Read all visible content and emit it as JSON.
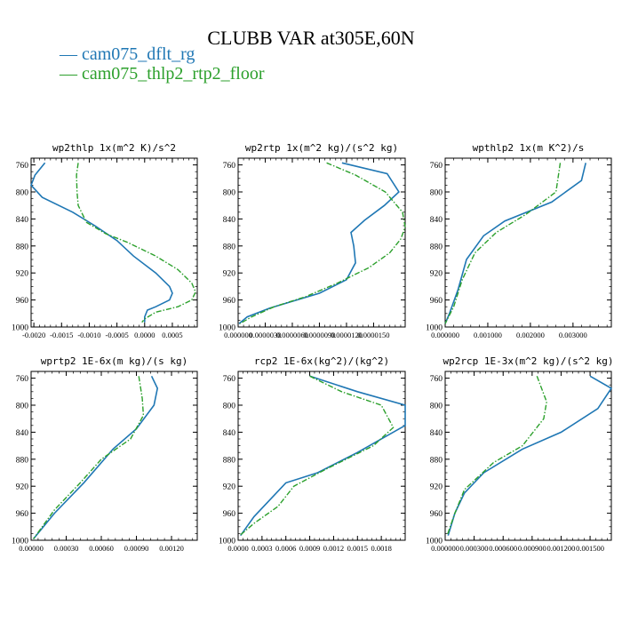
{
  "title": "CLUBB VAR at305E,60N",
  "legend": [
    {
      "name": "cam075_dflt_rg",
      "color": "#1f77b4",
      "dash": "solid"
    },
    {
      "name": "cam075_thlp2_rtp2_floor",
      "color": "#2ca02c",
      "dash": "dashdot"
    }
  ],
  "chart_data": [
    {
      "type": "line",
      "title": "wp2thlp  1x(m^2 K)/s^2",
      "xlim": [
        -0.00205,
        0.00095
      ],
      "ylim": [
        1000,
        750
      ],
      "y_ticks": [
        760,
        800,
        840,
        880,
        920,
        960,
        1000
      ],
      "x_ticks": [
        -0.002,
        -0.0015,
        -0.001,
        -0.0005,
        0,
        0.0005
      ],
      "x_tick_labels": [
        "-0.0020",
        "-0.0015",
        "-0.0010",
        "-0.0005",
        "0.0000",
        "0.0005"
      ],
      "series": [
        {
          "name": "cam075_dflt_rg",
          "points": [
            [
              -0.0018,
              757
            ],
            [
              -0.00198,
              775
            ],
            [
              -0.00205,
              790
            ],
            [
              -0.00185,
              808
            ],
            [
              -0.0013,
              830
            ],
            [
              -0.0009,
              850
            ],
            [
              -0.0005,
              872
            ],
            [
              -0.0002,
              895
            ],
            [
              0.0002,
              920
            ],
            [
              0.00045,
              940
            ],
            [
              0.0005,
              950
            ],
            [
              0.00045,
              960
            ],
            [
              0.0002,
              970
            ],
            [
              5e-05,
              975
            ],
            [
              0.0,
              985
            ],
            [
              0.0,
              993
            ]
          ]
        },
        {
          "name": "cam075_thlp2_rtp2_floor",
          "points": [
            [
              -0.0012,
              757
            ],
            [
              -0.00123,
              775
            ],
            [
              -0.00122,
              800
            ],
            [
              -0.0012,
              820
            ],
            [
              -0.00105,
              845
            ],
            [
              -0.0007,
              862
            ],
            [
              -0.0003,
              875
            ],
            [
              0.0002,
              895
            ],
            [
              0.0006,
              915
            ],
            [
              0.00085,
              935
            ],
            [
              0.00092,
              948
            ],
            [
              0.00085,
              960
            ],
            [
              0.0006,
              970
            ],
            [
              0.0002,
              978
            ],
            [
              0.0,
              988
            ],
            [
              -5e-05,
              993
            ]
          ]
        }
      ]
    },
    {
      "type": "line",
      "title": "wp2rtp  1x(m^2 kg)/(s^2 kg)",
      "xlim": [
        0,
        1.85e-05
      ],
      "ylim": [
        1000,
        750
      ],
      "y_ticks": [
        760,
        800,
        840,
        880,
        920,
        960,
        1000
      ],
      "x_ticks": [
        0,
        3e-06,
        6e-06,
        9e-06,
        1.2e-05,
        1.5e-05
      ],
      "x_tick_labels": [
        "0.000000",
        "0.0000030",
        "0.0000060",
        "0.0000090",
        "0.0000120",
        "0.0000150"
      ],
      "series": [
        {
          "name": "cam075_dflt_rg",
          "points": [
            [
              1.15e-05,
              757
            ],
            [
              1.65e-05,
              773
            ],
            [
              1.78e-05,
              800
            ],
            [
              1.62e-05,
              820
            ],
            [
              1.4e-05,
              842
            ],
            [
              1.25e-05,
              860
            ],
            [
              1.28e-05,
              880
            ],
            [
              1.3e-05,
              905
            ],
            [
              1.2e-05,
              930
            ],
            [
              9e-06,
              950
            ],
            [
              6e-06,
              962
            ],
            [
              3.5e-06,
              972
            ],
            [
              1e-06,
              985
            ],
            [
              1e-07,
              995
            ]
          ]
        },
        {
          "name": "cam075_thlp2_rtp2_floor",
          "points": [
            [
              9.8e-06,
              757
            ],
            [
              1.3e-05,
              775
            ],
            [
              1.63e-05,
              800
            ],
            [
              1.82e-05,
              830
            ],
            [
              1.85e-05,
              852
            ],
            [
              1.8e-05,
              870
            ],
            [
              1.68e-05,
              890
            ],
            [
              1.45e-05,
              912
            ],
            [
              1.1e-05,
              935
            ],
            [
              7.5e-06,
              955
            ],
            [
              4e-06,
              970
            ],
            [
              1.5e-06,
              985
            ],
            [
              2e-07,
              995
            ]
          ]
        }
      ]
    },
    {
      "type": "line",
      "title": "wpthlp2  1x(m K^2)/s",
      "xlim": [
        0,
        0.0039
      ],
      "ylim": [
        1000,
        750
      ],
      "y_ticks": [
        760,
        800,
        840,
        880,
        920,
        960,
        1000
      ],
      "x_ticks": [
        0,
        0.001,
        0.002,
        0.003
      ],
      "x_tick_labels": [
        "0.000000",
        "0.001000",
        "0.002000",
        "0.003000"
      ],
      "series": [
        {
          "name": "cam075_dflt_rg",
          "points": [
            [
              0.0033,
              757
            ],
            [
              0.0032,
              783
            ],
            [
              0.0025,
              815
            ],
            [
              0.0014,
              843
            ],
            [
              0.0009,
              865
            ],
            [
              0.0005,
              900
            ],
            [
              0.0003,
              945
            ],
            [
              0.0001,
              980
            ],
            [
              0.0,
              995
            ]
          ]
        },
        {
          "name": "cam075_thlp2_rtp2_floor",
          "points": [
            [
              0.0027,
              757
            ],
            [
              0.0026,
              800
            ],
            [
              0.0019,
              833
            ],
            [
              0.0012,
              860
            ],
            [
              0.0007,
              890
            ],
            [
              0.0004,
              930
            ],
            [
              0.0002,
              970
            ],
            [
              0.0,
              995
            ]
          ]
        }
      ]
    },
    {
      "type": "line",
      "title": "wprtp2  1E-6x(m kg)/(s kg)",
      "xlim": [
        0,
        0.00142
      ],
      "ylim": [
        1000,
        750
      ],
      "y_ticks": [
        760,
        800,
        840,
        880,
        920,
        960,
        1000
      ],
      "x_ticks": [
        0,
        0.0003,
        0.0006,
        0.0009,
        0.0012
      ],
      "x_tick_labels": [
        "0.00000",
        "0.00030",
        "0.00060",
        "0.00090",
        "0.00120"
      ],
      "series": [
        {
          "name": "cam075_dflt_rg",
          "points": [
            [
              0.00103,
              757
            ],
            [
              0.00108,
              775
            ],
            [
              0.00105,
              800
            ],
            [
              0.0009,
              835
            ],
            [
              0.0007,
              865
            ],
            [
              0.00045,
              915
            ],
            [
              0.0002,
              960
            ],
            [
              2e-05,
              998
            ]
          ]
        },
        {
          "name": "cam075_thlp2_rtp2_floor",
          "points": [
            [
              0.00092,
              757
            ],
            [
              0.00095,
              790
            ],
            [
              0.00096,
              815
            ],
            [
              0.00085,
              850
            ],
            [
              0.0006,
              880
            ],
            [
              0.00042,
              915
            ],
            [
              0.0002,
              955
            ],
            [
              2e-05,
              998
            ]
          ]
        }
      ]
    },
    {
      "type": "line",
      "title": "rcp2  1E-6x(kg^2)/(kg^2)",
      "xlim": [
        0,
        0.0021
      ],
      "ylim": [
        1000,
        750
      ],
      "y_ticks": [
        760,
        800,
        840,
        880,
        920,
        960,
        1000
      ],
      "x_ticks": [
        0,
        0.0003,
        0.0006,
        0.0009,
        0.0012,
        0.0015,
        0.0018
      ],
      "x_tick_labels": [
        "0.0000",
        "0.0003",
        "0.0006",
        "0.0009",
        "0.0012",
        "0.0015",
        "0.0018"
      ],
      "series": [
        {
          "name": "cam075_dflt_rg",
          "points": [
            [
              0.0009,
              757
            ],
            [
              0.0015,
              780
            ],
            [
              0.0021,
              800
            ],
            [
              0.0021,
              830
            ],
            [
              0.0015,
              870
            ],
            [
              0.001,
              900
            ],
            [
              0.0006,
              915
            ],
            [
              0.0004,
              940
            ],
            [
              0.0002,
              965
            ],
            [
              3e-05,
              993
            ]
          ]
        },
        {
          "name": "cam075_thlp2_rtp2_floor",
          "points": [
            [
              0.0009,
              757
            ],
            [
              0.0013,
              780
            ],
            [
              0.0018,
              800
            ],
            [
              0.00195,
              833
            ],
            [
              0.0017,
              860
            ],
            [
              0.0011,
              895
            ],
            [
              0.0007,
              920
            ],
            [
              0.0005,
              950
            ],
            [
              0.0002,
              975
            ],
            [
              2e-05,
              993
            ]
          ]
        }
      ]
    },
    {
      "type": "line",
      "title": "wp2rcp  1E-3x(m^2 kg)/(s^2 kg)",
      "xlim": [
        0,
        0.00172
      ],
      "ylim": [
        1000,
        750
      ],
      "y_ticks": [
        760,
        800,
        840,
        880,
        920,
        960,
        1000
      ],
      "x_ticks": [
        0,
        0.0003,
        0.0006,
        0.0009,
        0.0012,
        0.0015
      ],
      "x_tick_labels": [
        "0.000000",
        "0.000300",
        "0.000600",
        "0.000900",
        "0.001200",
        "0.001500"
      ],
      "series": [
        {
          "name": "cam075_dflt_rg",
          "points": [
            [
              0.0015,
              757
            ],
            [
              0.00172,
              775
            ],
            [
              0.00158,
              805
            ],
            [
              0.0012,
              840
            ],
            [
              0.0008,
              865
            ],
            [
              0.0004,
              900
            ],
            [
              0.0002,
              930
            ],
            [
              0.0001,
              960
            ],
            [
              3e-05,
              993
            ]
          ]
        },
        {
          "name": "cam075_thlp2_rtp2_floor",
          "points": [
            [
              0.00095,
              757
            ],
            [
              0.00105,
              795
            ],
            [
              0.00102,
              820
            ],
            [
              0.0008,
              860
            ],
            [
              0.0005,
              885
            ],
            [
              0.0002,
              925
            ],
            [
              0.0001,
              960
            ],
            [
              2e-05,
              993
            ]
          ]
        }
      ]
    }
  ]
}
